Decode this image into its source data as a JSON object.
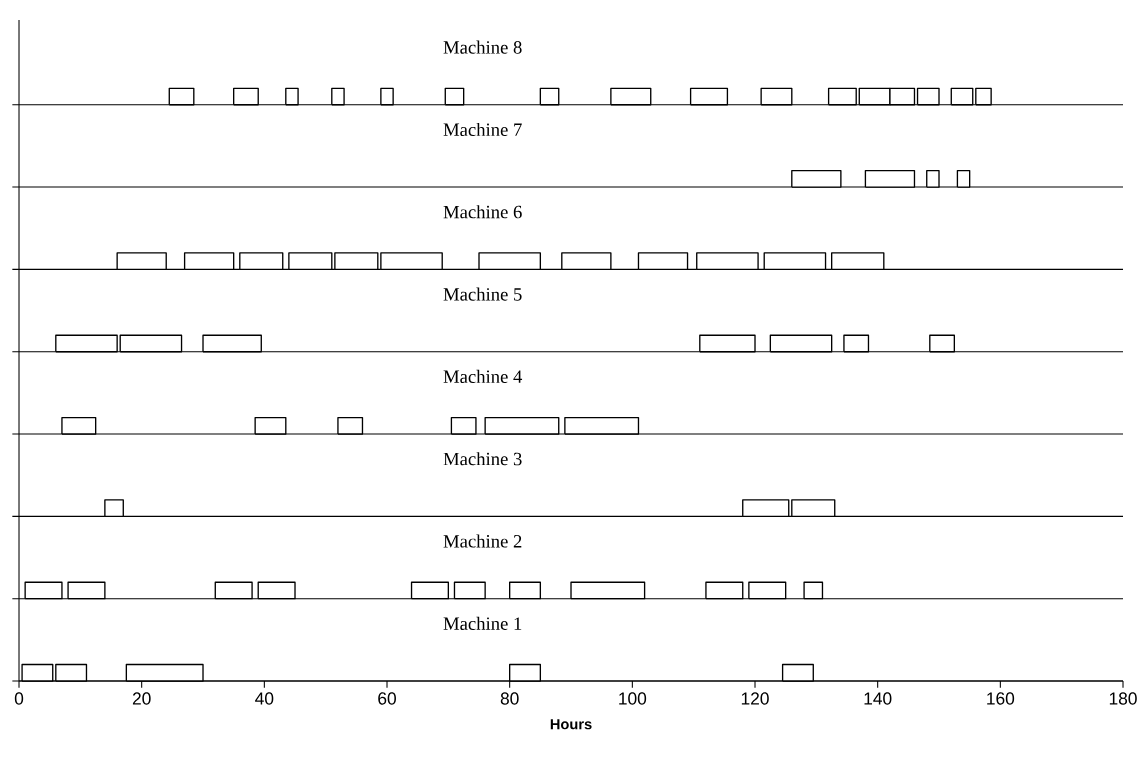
{
  "chart_data": {
    "type": "bar",
    "orientation": "horizontal",
    "xlabel": "Hours",
    "categories": [
      "Machine 8",
      "Machine 7",
      "Machine 6",
      "Machine 5",
      "Machine 4",
      "Machine 3",
      "Machine 2",
      "Machine 1"
    ],
    "xlim": [
      0,
      180
    ],
    "xticks": [
      0,
      20,
      40,
      60,
      80,
      100,
      120,
      140,
      160,
      180
    ],
    "series": [
      {
        "color": "#ffffff",
        "base": [
          24.5,
          126,
          16,
          6,
          7,
          14,
          1,
          0.5
        ],
        "values": [
          4,
          8,
          8,
          10,
          5.5,
          3,
          6,
          5
        ]
      },
      {
        "color": "#ffffff",
        "base": [
          35,
          138,
          27,
          16.5,
          38.5,
          118,
          8,
          6
        ],
        "values": [
          4,
          8,
          8,
          10,
          5,
          7.5,
          6,
          5
        ]
      },
      {
        "color": "#ffffff",
        "base": [
          43.5,
          148,
          36,
          30,
          52,
          126,
          32,
          17.5
        ],
        "values": [
          2,
          2,
          7,
          9.5,
          4,
          7,
          6,
          12.5
        ]
      },
      {
        "color": "#ffffff",
        "base": [
          51,
          153,
          44,
          111,
          70.5,
          null,
          39,
          80
        ],
        "values": [
          2,
          2,
          7,
          9,
          4,
          null,
          6,
          5
        ]
      },
      {
        "color": "#ffffff",
        "base": [
          59,
          null,
          51.5,
          122.5,
          76,
          null,
          64,
          124.5
        ],
        "values": [
          2,
          null,
          7,
          10,
          12,
          null,
          6,
          5
        ]
      },
      {
        "color": "#ffffff",
        "base": [
          69.5,
          null,
          59,
          134.5,
          89,
          null,
          71,
          null
        ],
        "values": [
          3,
          null,
          10,
          4,
          12,
          null,
          5,
          null
        ]
      },
      {
        "color": "#ffffff",
        "base": [
          85,
          null,
          75,
          148.5,
          null,
          null,
          80,
          null
        ],
        "values": [
          3,
          null,
          10,
          4,
          null,
          null,
          5,
          null
        ]
      },
      {
        "color": "#ffffff",
        "base": [
          96.5,
          null,
          88.5,
          null,
          null,
          null,
          90,
          null
        ],
        "values": [
          6.5,
          null,
          8,
          null,
          null,
          null,
          12,
          null
        ]
      },
      {
        "color": "#ffffff",
        "base": [
          109.5,
          null,
          101,
          null,
          null,
          null,
          112,
          null
        ],
        "values": [
          6,
          null,
          8,
          null,
          null,
          null,
          6,
          null
        ]
      },
      {
        "color": "#ffffff",
        "base": [
          121,
          null,
          110.5,
          null,
          null,
          null,
          119,
          null
        ],
        "values": [
          5,
          null,
          10,
          null,
          null,
          null,
          6,
          null
        ]
      },
      {
        "color": "#ffffff",
        "base": [
          132,
          null,
          121.5,
          null,
          null,
          null,
          128,
          null
        ],
        "values": [
          4.5,
          null,
          10,
          null,
          null,
          null,
          3,
          null
        ]
      },
      {
        "color": "#ffffff",
        "base": [
          137,
          null,
          132.5,
          null,
          null,
          null,
          null,
          null
        ],
        "values": [
          5,
          null,
          8.5,
          null,
          null,
          null,
          null,
          null
        ]
      },
      {
        "color": "#ffffff",
        "base": [
          142,
          null,
          null,
          null,
          null,
          null,
          null,
          null
        ],
        "values": [
          4,
          null,
          null,
          null,
          null,
          null,
          null,
          null
        ]
      },
      {
        "color": "#ffffff",
        "base": [
          146.5,
          null,
          null,
          null,
          null,
          null,
          null,
          null
        ],
        "values": [
          3.5,
          null,
          null,
          null,
          null,
          null,
          null,
          null
        ]
      },
      {
        "color": "#ffffff",
        "base": [
          152,
          null,
          null,
          null,
          null,
          null,
          null,
          null
        ],
        "values": [
          3.5,
          null,
          null,
          null,
          null,
          null,
          null,
          null
        ]
      },
      {
        "color": "#ffffff",
        "base": [
          156,
          null,
          null,
          null,
          null,
          null,
          null,
          null
        ],
        "values": [
          2.5,
          null,
          null,
          null,
          null,
          null,
          null,
          null
        ]
      }
    ]
  }
}
